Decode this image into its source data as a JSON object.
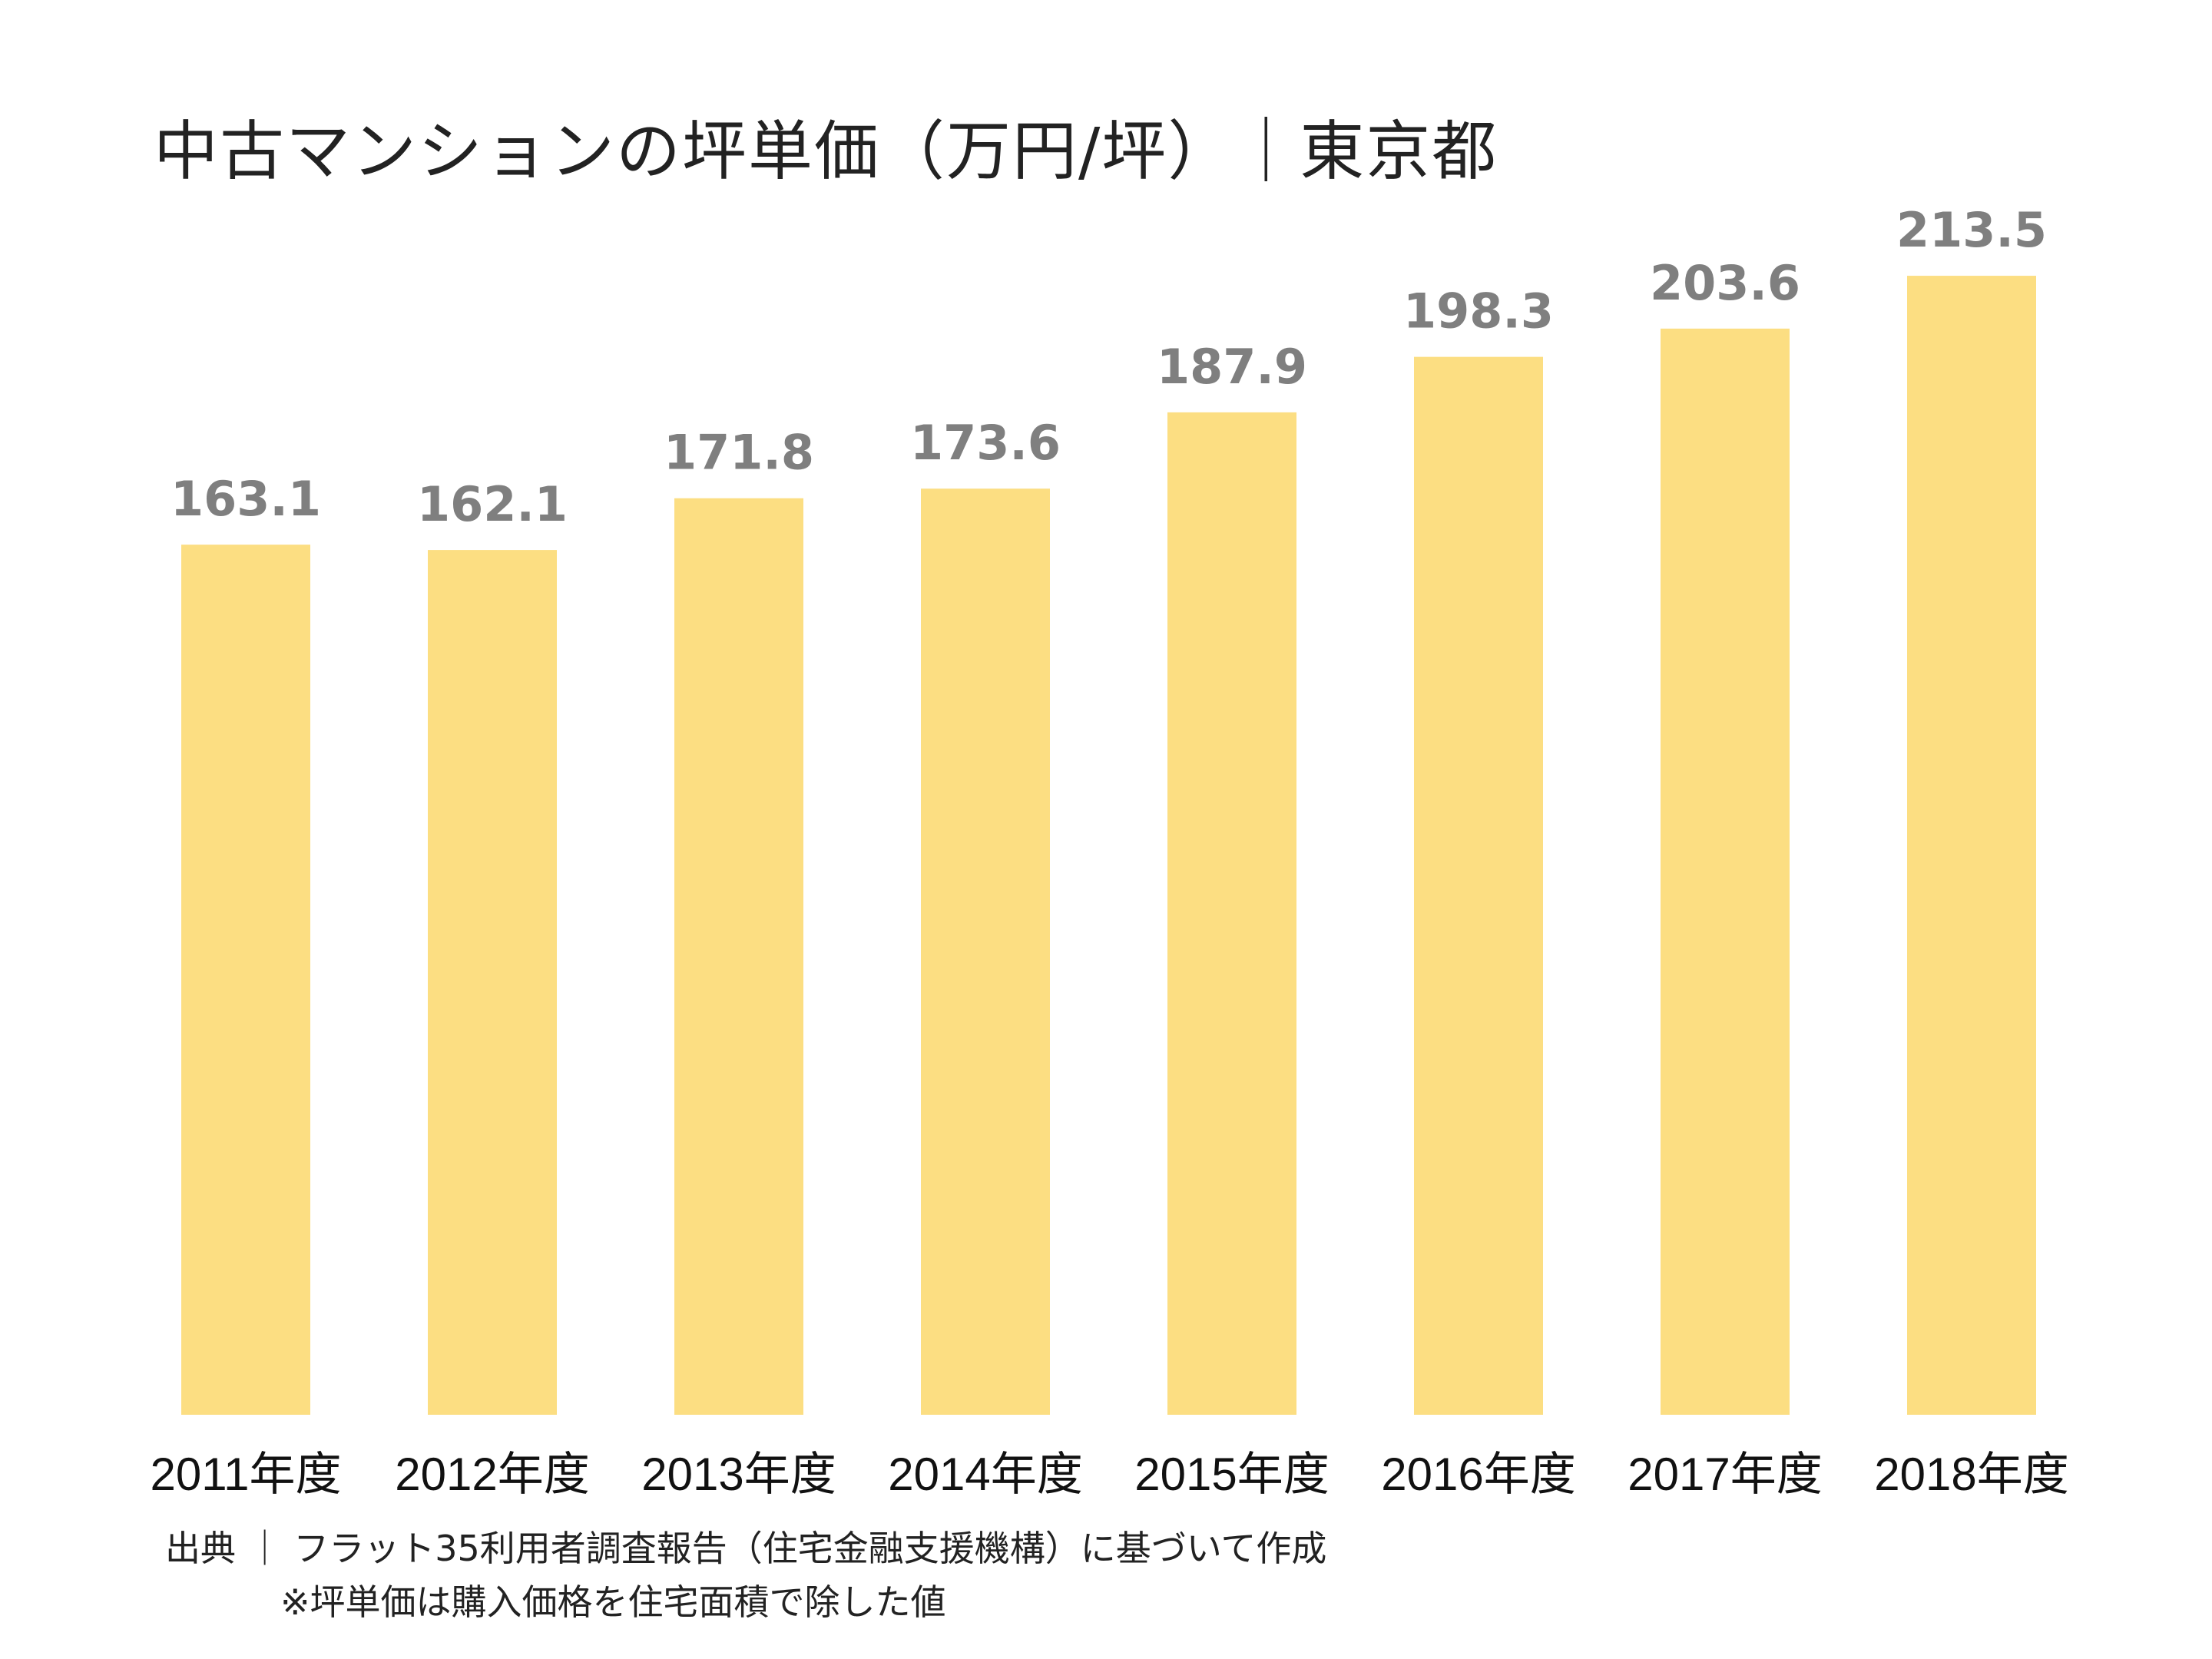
{
  "chart_data": {
    "type": "bar",
    "title": "中古マンションの坪単価（万円/坪）｜東京都",
    "categories": [
      "2011年度",
      "2012年度",
      "2013年度",
      "2014年度",
      "2015年度",
      "2016年度",
      "2017年度",
      "2018年度"
    ],
    "values": [
      163.1,
      162.1,
      171.8,
      173.6,
      187.9,
      198.3,
      203.6,
      213.5
    ],
    "value_labels": [
      "163.1",
      "162.1",
      "171.8",
      "173.6",
      "187.9",
      "198.3",
      "203.6",
      "213.5"
    ],
    "xlabel": "",
    "ylabel": "",
    "ylim": [
      0,
      240
    ],
    "grid": false,
    "legend": "none",
    "bar_color": "#fcde82",
    "value_label_color": "#7f7f7f"
  },
  "footer": {
    "source": "出典 ｜ フラット35利用者調査報告（住宅金融支援機構）に基づいて作成",
    "note": "※坪単価は購入価格を住宅面積で除した値"
  }
}
